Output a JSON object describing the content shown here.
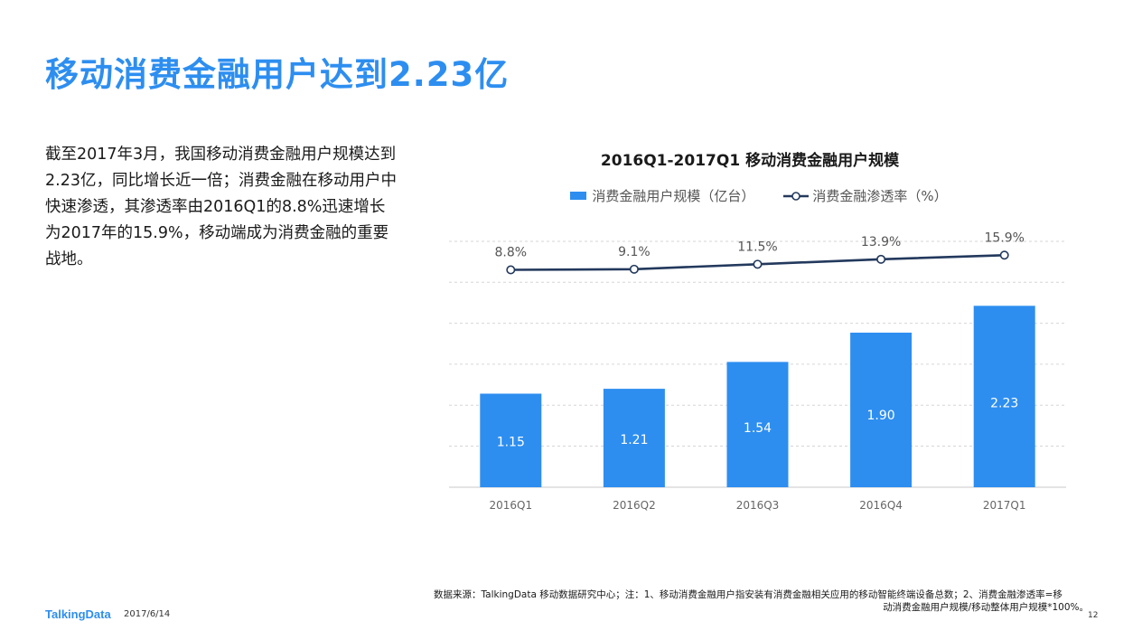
{
  "page": {
    "title": "移动消费金融用户达到2.23亿",
    "summary": "截至2017年3月，我国移动消费金融用户规模达到2.23亿，同比增长近一倍；消费金融在移动用户中快速渗透，其渗透率由2016Q1的8.8%迅速增长为2017年的15.9%，移动端成为消费金融的重要战地。"
  },
  "chart_data": {
    "type": "bar",
    "title": "2016Q1-2017Q1  移动消费金融用户规模",
    "categories": [
      "2016Q1",
      "2016Q2",
      "2016Q3",
      "2016Q4",
      "2017Q1"
    ],
    "series": [
      {
        "name": "消费金融用户规模（亿台）",
        "kind": "bar",
        "values": [
          1.15,
          1.21,
          1.54,
          1.9,
          2.23
        ],
        "labels": [
          "1.15",
          "1.21",
          "1.54",
          "1.90",
          "2.23"
        ],
        "color": "#2d8ef0"
      },
      {
        "name": "消费金融渗透率（%）",
        "kind": "line",
        "values": [
          8.8,
          9.1,
          11.5,
          13.9,
          15.9
        ],
        "labels": [
          "8.8%",
          "9.1%",
          "11.5%",
          "13.9%",
          "15.9%"
        ],
        "color": "#23395d"
      }
    ],
    "bar_axis_range": [
      0,
      2.5
    ],
    "line_axis_range": [
      0,
      100
    ],
    "grid": true,
    "legend_position": "top"
  },
  "footer": {
    "source_line1": "数据来源：TalkingData 移动数据研究中心；注：1、移动消费金融用户指安装有消费金融相关应用的移动智能终端设备总数；2、消费金融渗透率=移",
    "source_line2": "动消费金融用户规模/移动整体用户规模*100%。",
    "brand": "TalkingData",
    "date": "2017/6/14",
    "page_number": "12"
  }
}
